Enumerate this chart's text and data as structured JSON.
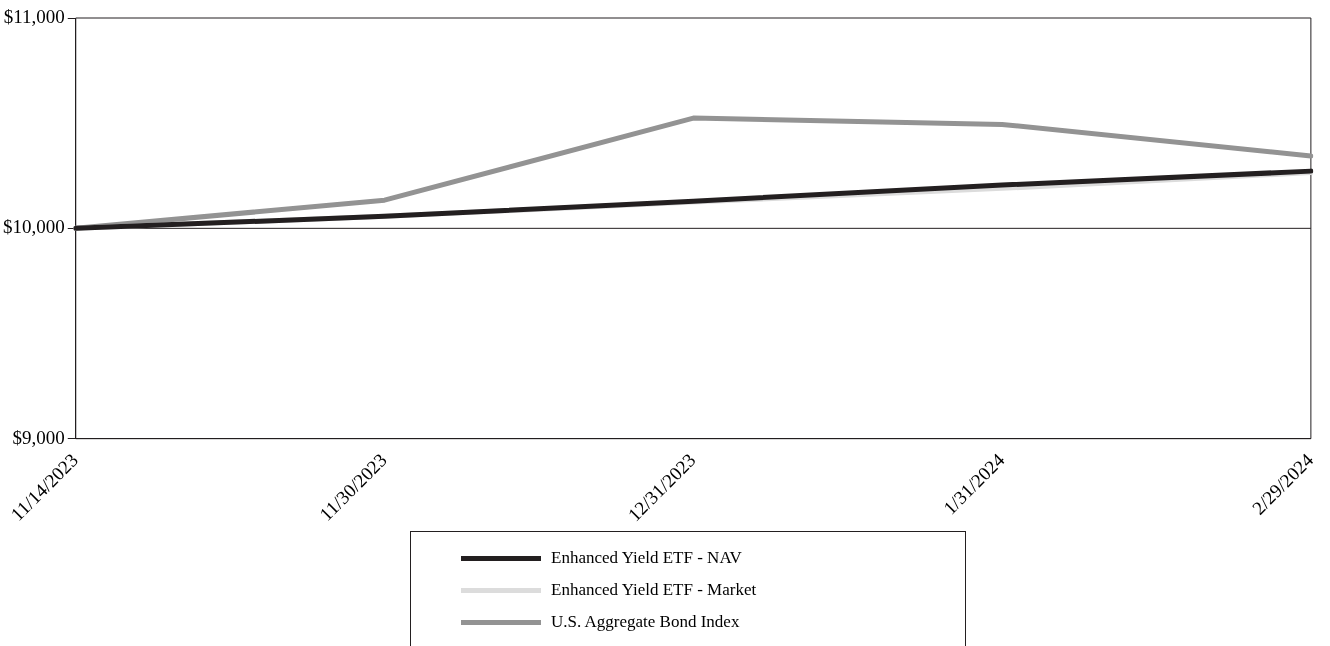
{
  "chart_data": {
    "type": "line",
    "categories": [
      "11/14/2023",
      "11/30/2023",
      "12/31/2023",
      "1/31/2024",
      "2/29/2024"
    ],
    "series": [
      {
        "name": "Enhanced Yield ETF - NAV",
        "color": "#231f20",
        "values": [
          10000,
          10057,
          10129,
          10206,
          10272
        ]
      },
      {
        "name": "Enhanced Yield ETF - Market",
        "color": "#dcdcdc",
        "values": [
          10000,
          10057,
          10125,
          10190,
          10265
        ]
      },
      {
        "name": "U.S. Aggregate Bond Index",
        "color": "#939393",
        "values": [
          10000,
          10134,
          10524,
          10494,
          10344
        ]
      }
    ],
    "ylim": [
      9000,
      11000
    ],
    "yticks": [
      {
        "value": 9000,
        "label": "$9,000"
      },
      {
        "value": 10000,
        "label": "$10,000"
      },
      {
        "value": 11000,
        "label": "$11,000"
      }
    ],
    "ref_lines": [
      {
        "axis": "y",
        "value": 10000,
        "color": "#231f20"
      }
    ],
    "grid": false,
    "legend": "bottom",
    "marker": "none",
    "line_style": "solid"
  }
}
